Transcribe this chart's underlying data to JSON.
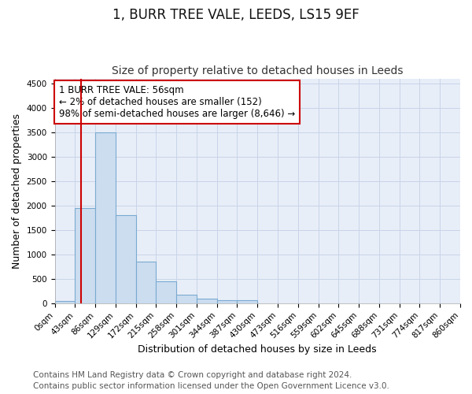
{
  "title": "1, BURR TREE VALE, LEEDS, LS15 9EF",
  "subtitle": "Size of property relative to detached houses in Leeds",
  "xlabel": "Distribution of detached houses by size in Leeds",
  "ylabel": "Number of detached properties",
  "bin_edges": [
    0,
    43,
    86,
    129,
    172,
    215,
    258,
    301,
    344,
    387,
    430,
    473,
    516,
    559,
    602,
    645,
    688,
    731,
    774,
    817,
    860
  ],
  "bin_labels": [
    "0sqm",
    "43sqm",
    "86sqm",
    "129sqm",
    "172sqm",
    "215sqm",
    "258sqm",
    "301sqm",
    "344sqm",
    "387sqm",
    "430sqm",
    "473sqm",
    "516sqm",
    "559sqm",
    "602sqm",
    "645sqm",
    "688sqm",
    "731sqm",
    "774sqm",
    "817sqm",
    "860sqm"
  ],
  "bar_heights": [
    50,
    1950,
    3500,
    1800,
    850,
    450,
    175,
    100,
    70,
    55,
    0,
    0,
    0,
    0,
    0,
    0,
    0,
    0,
    0,
    0
  ],
  "bar_color": "#ccddf0",
  "bar_edge_color": "#7aaad0",
  "property_sqm": 56,
  "property_line_color": "#cc0000",
  "annotation_line1": "1 BURR TREE VALE: 56sqm",
  "annotation_line2": "← 2% of detached houses are smaller (152)",
  "annotation_line3": "98% of semi-detached houses are larger (8,646) →",
  "annotation_box_color": "#ffffff",
  "annotation_box_edge": "#cc0000",
  "ylim": [
    0,
    4600
  ],
  "yticks": [
    0,
    500,
    1000,
    1500,
    2000,
    2500,
    3000,
    3500,
    4000,
    4500
  ],
  "grid_color": "#c8d4e8",
  "background_color": "#e8eef8",
  "footer_line1": "Contains HM Land Registry data © Crown copyright and database right 2024.",
  "footer_line2": "Contains public sector information licensed under the Open Government Licence v3.0.",
  "title_fontsize": 12,
  "subtitle_fontsize": 10,
  "axis_label_fontsize": 9,
  "tick_fontsize": 7.5,
  "annotation_fontsize": 8.5,
  "footer_fontsize": 7.5
}
